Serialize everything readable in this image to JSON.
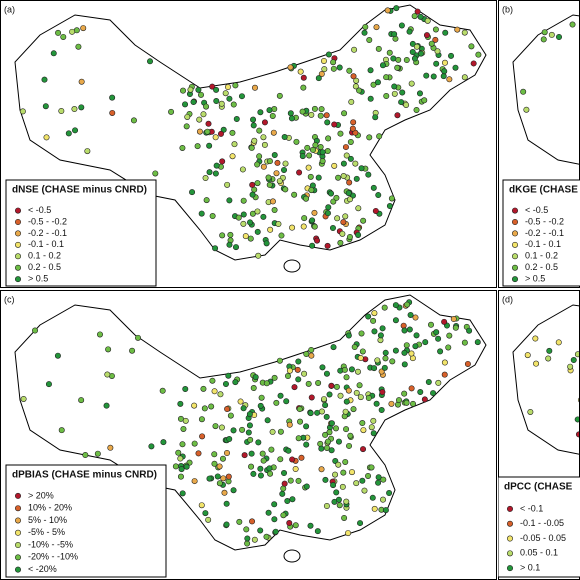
{
  "panels": [
    {
      "label": "(a)",
      "legend_title": "dNSE (CHASE minus CNRD)",
      "legend_items": [
        {
          "label": "< -0.5",
          "color": "#b2182b"
        },
        {
          "label": "-0.5 - -0.2",
          "color": "#d7602a"
        },
        {
          "label": "-0.2 - -0.1",
          "color": "#e9a94a"
        },
        {
          "label": "-0.1 - 0.1",
          "color": "#f2e46a"
        },
        {
          "label": "0.1 - 0.2",
          "color": "#b9dc6b"
        },
        {
          "label": "0.2 - 0.5",
          "color": "#6dbd45"
        },
        {
          "label": "> 0.5",
          "color": "#23953a"
        }
      ]
    },
    {
      "label": "(b)",
      "legend_title": "dKGE (CHASE",
      "legend_items": [
        {
          "label": "< -0.5",
          "color": "#b2182b"
        },
        {
          "label": "-0.5 - -0.2",
          "color": "#d7602a"
        },
        {
          "label": "-0.2 - -0.1",
          "color": "#e9a94a"
        },
        {
          "label": "-0.1 - 0.1",
          "color": "#f2e46a"
        },
        {
          "label": "0.1 - 0.2",
          "color": "#b9dc6b"
        },
        {
          "label": "0.2 - 0.5",
          "color": "#6dbd45"
        },
        {
          "label": "> 0.5",
          "color": "#23953a"
        }
      ]
    },
    {
      "label": "(c)",
      "legend_title": "dPBIAS (CHASE minus CNRD)",
      "legend_items": [
        {
          "label": "> 20%",
          "color": "#b2182b"
        },
        {
          "label": "10% - 20%",
          "color": "#d7602a"
        },
        {
          "label": "5% - 10%",
          "color": "#e9a94a"
        },
        {
          "label": "-5% - 5%",
          "color": "#f2e46a"
        },
        {
          "label": "-10% - -5%",
          "color": "#b9dc6b"
        },
        {
          "label": "-20% - -10%",
          "color": "#6dbd45"
        },
        {
          "label": "< -20%",
          "color": "#23953a"
        }
      ]
    },
    {
      "label": "(d)",
      "legend_title": "dPCC (CHASE",
      "legend_items": [
        {
          "label": "< -0.1",
          "color": "#b2182b"
        },
        {
          "label": "-0.1 - -0.05",
          "color": "#d7602a"
        },
        {
          "label": "-0.05 - 0.05",
          "color": "#f2e46a"
        },
        {
          "label": "0.05 - 0.1",
          "color": "#b9dc6b"
        },
        {
          "label": "> 0.1",
          "color": "#23953a"
        }
      ]
    }
  ]
}
